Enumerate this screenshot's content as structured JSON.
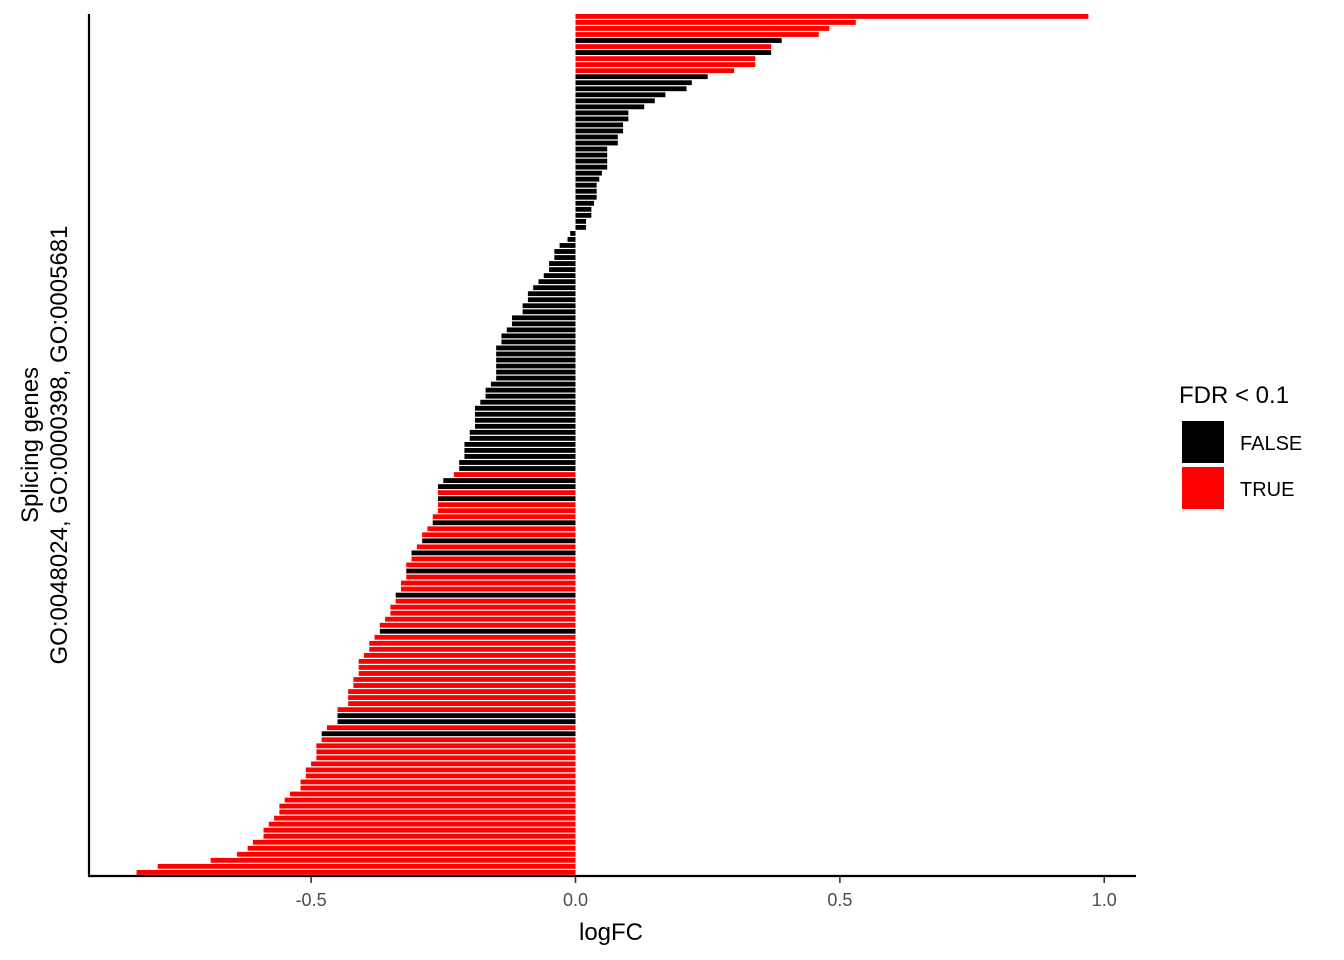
{
  "chart_data": {
    "type": "bar",
    "orientation": "horizontal",
    "xlabel": "logFC",
    "ylabel_line1": "Splicing genes",
    "ylabel_line2": "GO:0048024, GO:0000398, GO:0005681",
    "xlim": [
      -0.92,
      1.06
    ],
    "xticks": [
      -0.5,
      0.0,
      0.5,
      1.0
    ],
    "xtick_labels": [
      "-0.5",
      "0.0",
      "0.5",
      "1.0"
    ],
    "grid": false,
    "legend": {
      "title": "FDR < 0.1",
      "position": "right",
      "entries": [
        {
          "label": "FALSE",
          "color": "#000000"
        },
        {
          "label": "TRUE",
          "color": "#ff0000"
        }
      ]
    },
    "colors": {
      "FALSE": "#000000",
      "TRUE": "#ff0000"
    },
    "bars_sorted_descending": true,
    "values": [
      0.97,
      0.53,
      0.48,
      0.46,
      0.39,
      0.37,
      0.37,
      0.34,
      0.34,
      0.3,
      0.25,
      0.22,
      0.21,
      0.17,
      0.15,
      0.13,
      0.1,
      0.1,
      0.09,
      0.09,
      0.08,
      0.08,
      0.06,
      0.06,
      0.06,
      0.06,
      0.05,
      0.045,
      0.04,
      0.04,
      0.04,
      0.035,
      0.03,
      0.03,
      0.02,
      0.02,
      -0.01,
      -0.015,
      -0.03,
      -0.04,
      -0.04,
      -0.05,
      -0.05,
      -0.06,
      -0.07,
      -0.08,
      -0.09,
      -0.09,
      -0.1,
      -0.1,
      -0.12,
      -0.12,
      -0.13,
      -0.14,
      -0.14,
      -0.15,
      -0.15,
      -0.15,
      -0.15,
      -0.15,
      -0.15,
      -0.16,
      -0.17,
      -0.17,
      -0.18,
      -0.19,
      -0.19,
      -0.19,
      -0.19,
      -0.2,
      -0.2,
      -0.21,
      -0.21,
      -0.21,
      -0.22,
      -0.22,
      -0.23,
      -0.25,
      -0.26,
      -0.26,
      -0.26,
      -0.26,
      -0.26,
      -0.27,
      -0.27,
      -0.28,
      -0.29,
      -0.29,
      -0.3,
      -0.31,
      -0.31,
      -0.32,
      -0.32,
      -0.32,
      -0.33,
      -0.33,
      -0.34,
      -0.34,
      -0.35,
      -0.35,
      -0.36,
      -0.37,
      -0.37,
      -0.38,
      -0.39,
      -0.39,
      -0.4,
      -0.41,
      -0.41,
      -0.41,
      -0.42,
      -0.42,
      -0.43,
      -0.43,
      -0.43,
      -0.45,
      -0.45,
      -0.45,
      -0.47,
      -0.48,
      -0.48,
      -0.49,
      -0.49,
      -0.49,
      -0.5,
      -0.51,
      -0.51,
      -0.52,
      -0.52,
      -0.54,
      -0.55,
      -0.56,
      -0.56,
      -0.57,
      -0.58,
      -0.59,
      -0.59,
      -0.61,
      -0.62,
      -0.64,
      -0.69,
      -0.79,
      -0.83
    ],
    "significant": [
      true,
      true,
      true,
      true,
      false,
      true,
      false,
      true,
      true,
      true,
      false,
      false,
      false,
      false,
      false,
      false,
      false,
      false,
      false,
      false,
      false,
      false,
      false,
      false,
      false,
      false,
      false,
      false,
      false,
      false,
      false,
      false,
      false,
      false,
      false,
      false,
      false,
      false,
      false,
      false,
      false,
      false,
      false,
      false,
      false,
      false,
      false,
      false,
      false,
      false,
      false,
      false,
      false,
      false,
      false,
      false,
      false,
      false,
      false,
      false,
      false,
      false,
      false,
      false,
      false,
      false,
      false,
      false,
      false,
      false,
      false,
      false,
      false,
      false,
      false,
      false,
      true,
      false,
      false,
      true,
      false,
      true,
      true,
      true,
      false,
      true,
      true,
      false,
      true,
      false,
      true,
      true,
      false,
      true,
      true,
      true,
      false,
      true,
      true,
      true,
      true,
      true,
      false,
      true,
      true,
      true,
      true,
      true,
      true,
      true,
      true,
      true,
      true,
      true,
      true,
      true,
      false,
      false,
      true,
      false,
      true,
      true,
      true,
      true,
      true,
      true,
      true,
      true,
      true,
      true,
      true,
      true,
      true,
      true,
      true,
      true,
      true,
      true,
      true,
      true,
      true,
      true,
      true,
      true
    ]
  }
}
